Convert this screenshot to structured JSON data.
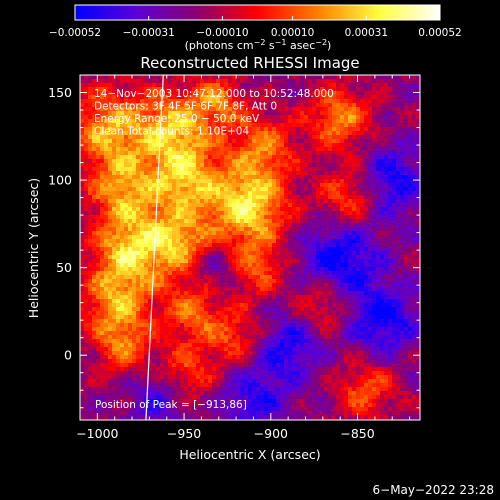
{
  "chart_data": {
    "type": "heatmap",
    "title": "Reconstructed RHESSI Image",
    "xlabel": "Heliocentric X (arcsec)",
    "ylabel": "Heliocentric Y (arcsec)",
    "xlim": [
      -1010,
      -814
    ],
    "ylim": [
      -37,
      160
    ],
    "x_ticks": [
      -1000,
      -950,
      -900,
      -850
    ],
    "y_ticks": [
      0,
      50,
      100,
      150
    ],
    "x_tick_labels": [
      "−1000",
      "−950",
      "−900",
      "−850"
    ],
    "y_tick_labels": [
      "0",
      "50",
      "100",
      "150"
    ],
    "colorbar": {
      "min": -0.00052,
      "max": 0.00052,
      "ticks": [
        -0.00052,
        -0.00031,
        -0.0001,
        0.0001,
        0.00031,
        0.00052
      ],
      "tick_labels": [
        "−0.00052",
        "−0.00031",
        "−0.00010",
        "0.00010",
        "0.00031",
        "0.00052"
      ],
      "unit_label": "(photons cm",
      "unit_sup1": "−2",
      "unit_mid": " s",
      "unit_sup2": "−1",
      "unit_mid2": " asec",
      "unit_sup3": "−2",
      "unit_end": ")",
      "colors": [
        "#0000ff",
        "#5a00d8",
        "#8a0070",
        "#ff0000",
        "#ff8000",
        "#ffff40",
        "#ffffff"
      ]
    },
    "annotations": [
      "14−Nov−2003 10:47:12.000 to 10:52:48.000",
      "Detectors: 3F 4F 5F 6F 7F 8F, Att 0",
      "Energy Range: 25.0 − 50.0 keV",
      "Clean    Total counts: 1.10E+04"
    ],
    "peak_label": "Position of Peak = [−913,86]",
    "limb_line": [
      [
        -962,
        160
      ],
      [
        -972,
        -37
      ]
    ],
    "hotspots": [
      {
        "x": -993,
        "y": 130,
        "s": 16,
        "a": 0.0004
      },
      {
        "x": -985,
        "y": 95,
        "s": 14,
        "a": 0.00035
      },
      {
        "x": -980,
        "y": 60,
        "s": 16,
        "a": 0.00045
      },
      {
        "x": -990,
        "y": 30,
        "s": 14,
        "a": 0.00033
      },
      {
        "x": -985,
        "y": 5,
        "s": 12,
        "a": 0.00028
      },
      {
        "x": -955,
        "y": 130,
        "s": 15,
        "a": 0.00042
      },
      {
        "x": -950,
        "y": 100,
        "s": 14,
        "a": 0.0004
      },
      {
        "x": -952,
        "y": 65,
        "s": 13,
        "a": 0.00035
      },
      {
        "x": -945,
        "y": 25,
        "s": 12,
        "a": 0.0003
      },
      {
        "x": -948,
        "y": -10,
        "s": 12,
        "a": 0.00026
      },
      {
        "x": -913,
        "y": 86,
        "s": 16,
        "a": 0.00052
      },
      {
        "x": -905,
        "y": 120,
        "s": 13,
        "a": 0.0003
      },
      {
        "x": -910,
        "y": 50,
        "s": 12,
        "a": 0.00028
      },
      {
        "x": -920,
        "y": 10,
        "s": 11,
        "a": 0.00026
      },
      {
        "x": -860,
        "y": 135,
        "s": 13,
        "a": 0.00035
      },
      {
        "x": -855,
        "y": 90,
        "s": 12,
        "a": 0.0003
      },
      {
        "x": -870,
        "y": 30,
        "s": 11,
        "a": 0.00025
      },
      {
        "x": -845,
        "y": -20,
        "s": 12,
        "a": 0.00028
      },
      {
        "x": -930,
        "y": 145,
        "s": 10,
        "a": 0.0003
      }
    ],
    "coldspots": [
      {
        "x": -860,
        "y": 55,
        "s": 16,
        "a": -0.00035
      },
      {
        "x": -830,
        "y": 100,
        "s": 14,
        "a": -0.0003
      },
      {
        "x": -835,
        "y": 20,
        "s": 14,
        "a": -0.00032
      },
      {
        "x": -890,
        "y": 5,
        "s": 13,
        "a": -0.00028
      },
      {
        "x": -910,
        "y": -25,
        "s": 14,
        "a": -0.00025
      },
      {
        "x": -965,
        "y": -25,
        "s": 12,
        "a": -0.00022
      },
      {
        "x": -930,
        "y": 50,
        "s": 10,
        "a": -0.0002
      }
    ]
  },
  "timestamp": "6−May−2022 23:28"
}
